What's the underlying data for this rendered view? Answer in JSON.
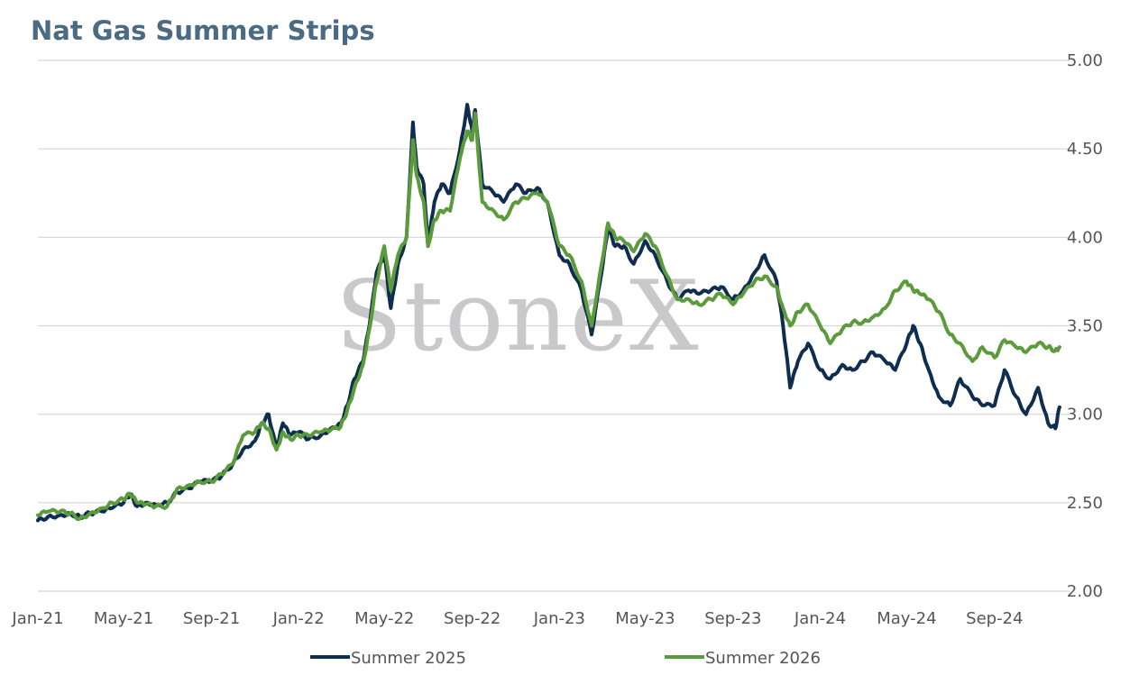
{
  "chart_data": {
    "type": "line",
    "title": "Nat Gas Summer Strips",
    "watermark": "StoneX",
    "xlabel": "",
    "ylabel": "",
    "ylim": [
      2.0,
      5.0
    ],
    "y_ticks": [
      "2.00",
      "2.50",
      "3.00",
      "3.50",
      "4.00",
      "4.50",
      "5.00"
    ],
    "x_ticks": [
      "Jan-21",
      "May-21",
      "Sep-21",
      "Jan-22",
      "May-22",
      "Sep-22",
      "Jan-23",
      "May-23",
      "Sep-23",
      "Jan-24",
      "May-24",
      "Sep-24"
    ],
    "x_range": [
      "2021-01-01",
      "2024-12-15"
    ],
    "grid": "horizontal",
    "legend_position": "bottom",
    "series": [
      {
        "name": "Summer 2025",
        "color": "#0f2d4e",
        "points": [
          [
            "2021-01-01",
            2.4
          ],
          [
            "2021-01-15",
            2.42
          ],
          [
            "2021-02-01",
            2.43
          ],
          [
            "2021-02-15",
            2.44
          ],
          [
            "2021-03-01",
            2.42
          ],
          [
            "2021-03-15",
            2.44
          ],
          [
            "2021-04-01",
            2.45
          ],
          [
            "2021-04-15",
            2.47
          ],
          [
            "2021-05-01",
            2.5
          ],
          [
            "2021-05-10",
            2.55
          ],
          [
            "2021-05-20",
            2.48
          ],
          [
            "2021-06-01",
            2.5
          ],
          [
            "2021-06-15",
            2.49
          ],
          [
            "2021-07-01",
            2.5
          ],
          [
            "2021-07-15",
            2.56
          ],
          [
            "2021-08-01",
            2.58
          ],
          [
            "2021-08-15",
            2.62
          ],
          [
            "2021-09-01",
            2.62
          ],
          [
            "2021-09-15",
            2.65
          ],
          [
            "2021-10-01",
            2.72
          ],
          [
            "2021-10-15",
            2.8
          ],
          [
            "2021-11-01",
            2.85
          ],
          [
            "2021-11-10",
            2.95
          ],
          [
            "2021-11-20",
            3.0
          ],
          [
            "2021-12-01",
            2.8
          ],
          [
            "2021-12-10",
            2.95
          ],
          [
            "2021-12-20",
            2.88
          ],
          [
            "2022-01-01",
            2.9
          ],
          [
            "2022-01-15",
            2.86
          ],
          [
            "2022-02-01",
            2.88
          ],
          [
            "2022-02-15",
            2.92
          ],
          [
            "2022-03-01",
            2.95
          ],
          [
            "2022-03-10",
            3.05
          ],
          [
            "2022-03-20",
            3.2
          ],
          [
            "2022-04-01",
            3.3
          ],
          [
            "2022-04-10",
            3.5
          ],
          [
            "2022-04-20",
            3.8
          ],
          [
            "2022-05-01",
            3.9
          ],
          [
            "2022-05-10",
            3.6
          ],
          [
            "2022-05-20",
            3.85
          ],
          [
            "2022-06-01",
            4.0
          ],
          [
            "2022-06-10",
            4.65
          ],
          [
            "2022-06-15",
            4.4
          ],
          [
            "2022-06-25",
            4.3
          ],
          [
            "2022-07-01",
            3.95
          ],
          [
            "2022-07-10",
            4.2
          ],
          [
            "2022-07-20",
            4.3
          ],
          [
            "2022-08-01",
            4.25
          ],
          [
            "2022-08-15",
            4.5
          ],
          [
            "2022-08-25",
            4.75
          ],
          [
            "2022-09-01",
            4.6
          ],
          [
            "2022-09-05",
            4.72
          ],
          [
            "2022-09-15",
            4.3
          ],
          [
            "2022-10-01",
            4.25
          ],
          [
            "2022-10-15",
            4.2
          ],
          [
            "2022-11-01",
            4.3
          ],
          [
            "2022-11-15",
            4.25
          ],
          [
            "2022-12-01",
            4.28
          ],
          [
            "2022-12-15",
            4.2
          ],
          [
            "2023-01-01",
            3.9
          ],
          [
            "2023-01-15",
            3.85
          ],
          [
            "2023-02-01",
            3.7
          ],
          [
            "2023-02-15",
            3.45
          ],
          [
            "2023-03-01",
            3.8
          ],
          [
            "2023-03-10",
            4.05
          ],
          [
            "2023-03-20",
            3.95
          ],
          [
            "2023-04-01",
            3.95
          ],
          [
            "2023-04-15",
            3.85
          ],
          [
            "2023-05-01",
            3.98
          ],
          [
            "2023-05-15",
            3.9
          ],
          [
            "2023-06-01",
            3.75
          ],
          [
            "2023-06-15",
            3.65
          ],
          [
            "2023-07-01",
            3.7
          ],
          [
            "2023-07-15",
            3.68
          ],
          [
            "2023-08-01",
            3.7
          ],
          [
            "2023-08-15",
            3.72
          ],
          [
            "2023-09-01",
            3.65
          ],
          [
            "2023-09-15",
            3.7
          ],
          [
            "2023-10-01",
            3.8
          ],
          [
            "2023-10-15",
            3.9
          ],
          [
            "2023-11-01",
            3.75
          ],
          [
            "2023-11-10",
            3.5
          ],
          [
            "2023-11-20",
            3.15
          ],
          [
            "2023-12-01",
            3.3
          ],
          [
            "2023-12-15",
            3.4
          ],
          [
            "2024-01-01",
            3.25
          ],
          [
            "2024-01-15",
            3.2
          ],
          [
            "2024-02-01",
            3.28
          ],
          [
            "2024-02-15",
            3.25
          ],
          [
            "2024-03-01",
            3.3
          ],
          [
            "2024-03-15",
            3.35
          ],
          [
            "2024-04-01",
            3.3
          ],
          [
            "2024-04-15",
            3.25
          ],
          [
            "2024-05-01",
            3.4
          ],
          [
            "2024-05-10",
            3.5
          ],
          [
            "2024-05-20",
            3.4
          ],
          [
            "2024-06-01",
            3.25
          ],
          [
            "2024-06-15",
            3.1
          ],
          [
            "2024-07-01",
            3.05
          ],
          [
            "2024-07-15",
            3.2
          ],
          [
            "2024-08-01",
            3.1
          ],
          [
            "2024-08-15",
            3.05
          ],
          [
            "2024-09-01",
            3.05
          ],
          [
            "2024-09-15",
            3.25
          ],
          [
            "2024-10-01",
            3.1
          ],
          [
            "2024-10-15",
            3.0
          ],
          [
            "2024-11-01",
            3.15
          ],
          [
            "2024-11-15",
            2.95
          ],
          [
            "2024-11-25",
            2.92
          ],
          [
            "2024-12-01",
            3.04
          ]
        ]
      },
      {
        "name": "Summer 2026",
        "color": "#5b9b3c",
        "points": [
          [
            "2021-01-01",
            2.43
          ],
          [
            "2021-01-15",
            2.45
          ],
          [
            "2021-02-01",
            2.45
          ],
          [
            "2021-02-15",
            2.44
          ],
          [
            "2021-03-01",
            2.41
          ],
          [
            "2021-03-15",
            2.44
          ],
          [
            "2021-04-01",
            2.47
          ],
          [
            "2021-04-15",
            2.5
          ],
          [
            "2021-05-01",
            2.52
          ],
          [
            "2021-05-10",
            2.55
          ],
          [
            "2021-05-20",
            2.5
          ],
          [
            "2021-06-01",
            2.49
          ],
          [
            "2021-06-15",
            2.48
          ],
          [
            "2021-07-01",
            2.48
          ],
          [
            "2021-07-15",
            2.58
          ],
          [
            "2021-08-01",
            2.6
          ],
          [
            "2021-08-15",
            2.62
          ],
          [
            "2021-09-01",
            2.62
          ],
          [
            "2021-09-15",
            2.66
          ],
          [
            "2021-10-01",
            2.72
          ],
          [
            "2021-10-15",
            2.88
          ],
          [
            "2021-11-01",
            2.9
          ],
          [
            "2021-11-10",
            2.95
          ],
          [
            "2021-11-20",
            2.92
          ],
          [
            "2021-12-01",
            2.8
          ],
          [
            "2021-12-10",
            2.9
          ],
          [
            "2021-12-20",
            2.86
          ],
          [
            "2022-01-01",
            2.88
          ],
          [
            "2022-01-15",
            2.88
          ],
          [
            "2022-02-01",
            2.9
          ],
          [
            "2022-02-15",
            2.91
          ],
          [
            "2022-03-01",
            2.93
          ],
          [
            "2022-03-10",
            3.02
          ],
          [
            "2022-03-20",
            3.15
          ],
          [
            "2022-04-01",
            3.28
          ],
          [
            "2022-04-10",
            3.48
          ],
          [
            "2022-04-20",
            3.75
          ],
          [
            "2022-05-01",
            3.95
          ],
          [
            "2022-05-10",
            3.7
          ],
          [
            "2022-05-20",
            3.9
          ],
          [
            "2022-06-01",
            4.0
          ],
          [
            "2022-06-10",
            4.55
          ],
          [
            "2022-06-15",
            4.35
          ],
          [
            "2022-06-25",
            4.2
          ],
          [
            "2022-07-01",
            3.95
          ],
          [
            "2022-07-10",
            4.1
          ],
          [
            "2022-07-20",
            4.15
          ],
          [
            "2022-08-01",
            4.15
          ],
          [
            "2022-08-15",
            4.45
          ],
          [
            "2022-08-25",
            4.6
          ],
          [
            "2022-09-01",
            4.55
          ],
          [
            "2022-09-05",
            4.7
          ],
          [
            "2022-09-15",
            4.2
          ],
          [
            "2022-10-01",
            4.15
          ],
          [
            "2022-10-15",
            4.1
          ],
          [
            "2022-11-01",
            4.2
          ],
          [
            "2022-11-15",
            4.22
          ],
          [
            "2022-12-01",
            4.25
          ],
          [
            "2022-12-15",
            4.2
          ],
          [
            "2023-01-01",
            3.95
          ],
          [
            "2023-01-15",
            3.9
          ],
          [
            "2023-02-01",
            3.75
          ],
          [
            "2023-02-15",
            3.5
          ],
          [
            "2023-03-01",
            3.85
          ],
          [
            "2023-03-10",
            4.08
          ],
          [
            "2023-03-20",
            4.0
          ],
          [
            "2023-04-01",
            3.98
          ],
          [
            "2023-04-15",
            3.92
          ],
          [
            "2023-05-01",
            4.02
          ],
          [
            "2023-05-15",
            3.95
          ],
          [
            "2023-06-01",
            3.78
          ],
          [
            "2023-06-15",
            3.65
          ],
          [
            "2023-07-01",
            3.65
          ],
          [
            "2023-07-15",
            3.62
          ],
          [
            "2023-08-01",
            3.65
          ],
          [
            "2023-08-15",
            3.68
          ],
          [
            "2023-09-01",
            3.62
          ],
          [
            "2023-09-15",
            3.68
          ],
          [
            "2023-10-01",
            3.75
          ],
          [
            "2023-10-15",
            3.78
          ],
          [
            "2023-11-01",
            3.72
          ],
          [
            "2023-11-10",
            3.6
          ],
          [
            "2023-11-20",
            3.5
          ],
          [
            "2023-12-01",
            3.58
          ],
          [
            "2023-12-15",
            3.62
          ],
          [
            "2024-01-01",
            3.5
          ],
          [
            "2024-01-15",
            3.4
          ],
          [
            "2024-02-01",
            3.48
          ],
          [
            "2024-02-15",
            3.52
          ],
          [
            "2024-03-01",
            3.52
          ],
          [
            "2024-03-15",
            3.55
          ],
          [
            "2024-04-01",
            3.6
          ],
          [
            "2024-04-15",
            3.7
          ],
          [
            "2024-05-01",
            3.75
          ],
          [
            "2024-05-10",
            3.7
          ],
          [
            "2024-05-20",
            3.68
          ],
          [
            "2024-06-01",
            3.65
          ],
          [
            "2024-06-15",
            3.58
          ],
          [
            "2024-07-01",
            3.45
          ],
          [
            "2024-07-15",
            3.4
          ],
          [
            "2024-08-01",
            3.3
          ],
          [
            "2024-08-15",
            3.38
          ],
          [
            "2024-09-01",
            3.32
          ],
          [
            "2024-09-15",
            3.42
          ],
          [
            "2024-10-01",
            3.38
          ],
          [
            "2024-10-15",
            3.35
          ],
          [
            "2024-11-01",
            3.4
          ],
          [
            "2024-11-15",
            3.38
          ],
          [
            "2024-11-25",
            3.36
          ],
          [
            "2024-12-01",
            3.38
          ]
        ]
      }
    ]
  }
}
